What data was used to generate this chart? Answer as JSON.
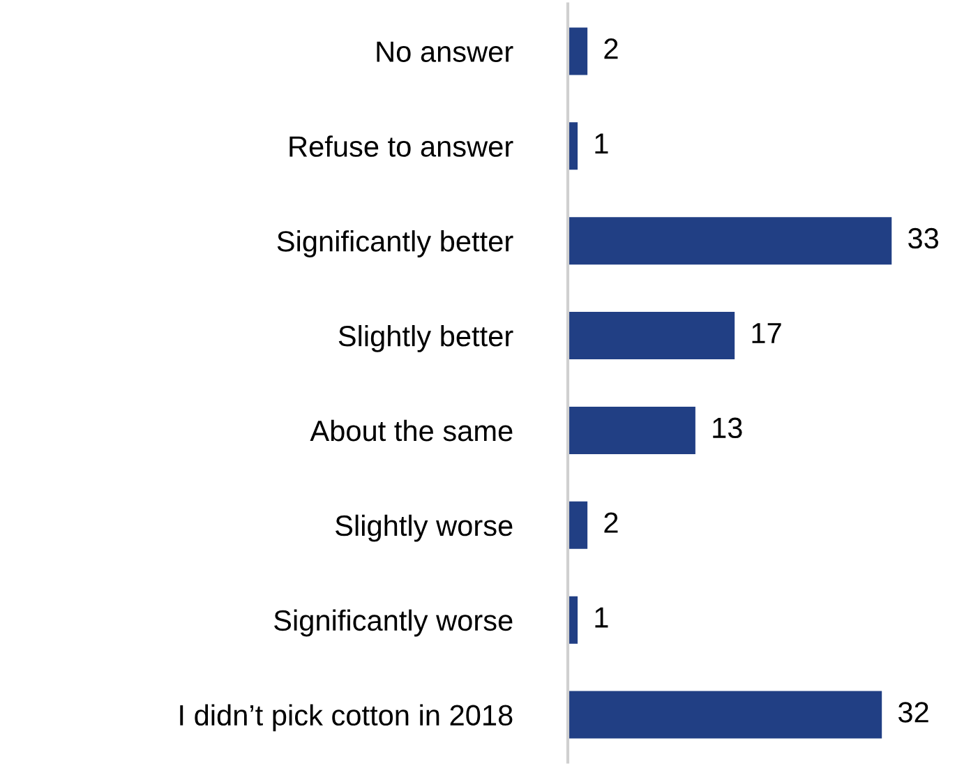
{
  "chart_data": {
    "type": "bar",
    "orientation": "horizontal",
    "categories": [
      "No answer",
      "Refuse to answer",
      "Significantly better",
      "Slightly better",
      "About the same",
      "Slightly worse",
      "Significantly worse",
      "I didn’t pick cotton in 2018"
    ],
    "values": [
      2,
      1,
      33,
      17,
      13,
      2,
      1,
      32
    ],
    "color": "#213f84",
    "data_labels": true,
    "grid": false,
    "legend": false
  }
}
